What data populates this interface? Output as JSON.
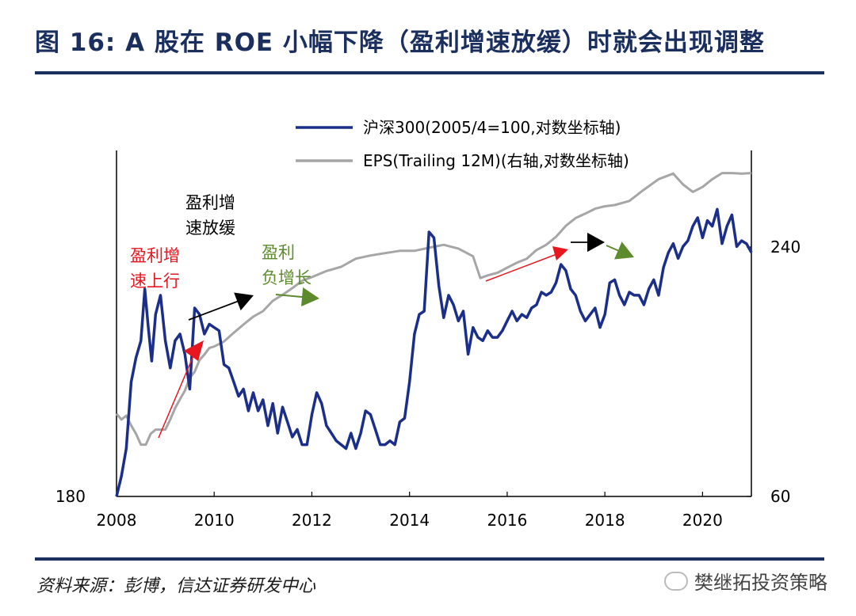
{
  "header": {
    "title": "图 16: A 股在 ROE 小幅下降（盈利增速放缓）时就会出现调整"
  },
  "footer": {
    "source": "资料来源：彭博，信达证券研发中心",
    "watermark": "樊继拓投资策略"
  },
  "colors": {
    "title": "#1b2f5e",
    "csi300": "#1b2f8a",
    "eps": "#a6a6a6",
    "arrow_red": "#e8161f",
    "arrow_black": "#000000",
    "arrow_green": "#5e8a2e"
  },
  "chart_data": {
    "type": "line",
    "legend_position": "top",
    "grid": false,
    "x_ticks": [
      "2008",
      "2010",
      "2012",
      "2014",
      "2016",
      "2018",
      "2020"
    ],
    "xlim": [
      2008,
      2021
    ],
    "y_left_label_bottom": "180",
    "y_right_labels": [
      "240",
      "60"
    ],
    "y_right_scale": "log",
    "annotations": [
      {
        "text": "盈利增\n速上行",
        "color": "#e8161f"
      },
      {
        "text": "盈利增\n速放缓",
        "color": "#000000"
      },
      {
        "text": "盈利\n负增长",
        "color": "#5e8a2e"
      }
    ],
    "series": [
      {
        "name": "沪深300(2005/4=100,对数坐标轴)",
        "color": "#1b2f8a",
        "x": [
          2008.0,
          2008.1,
          2008.2,
          2008.3,
          2008.4,
          2008.5,
          2008.58,
          2008.65,
          2008.72,
          2008.8,
          2008.9,
          2009.0,
          2009.1,
          2009.2,
          2009.3,
          2009.4,
          2009.5,
          2009.6,
          2009.7,
          2009.8,
          2009.9,
          2010.0,
          2010.1,
          2010.2,
          2010.3,
          2010.4,
          2010.5,
          2010.6,
          2010.7,
          2010.8,
          2010.9,
          2011.0,
          2011.1,
          2011.2,
          2011.3,
          2011.4,
          2011.5,
          2011.6,
          2011.7,
          2011.8,
          2011.9,
          2012.0,
          2012.1,
          2012.2,
          2012.3,
          2012.4,
          2012.5,
          2012.6,
          2012.7,
          2012.8,
          2012.9,
          2013.0,
          2013.1,
          2013.2,
          2013.3,
          2013.4,
          2013.5,
          2013.6,
          2013.7,
          2013.8,
          2013.9,
          2014.0,
          2014.1,
          2014.2,
          2014.3,
          2014.4,
          2014.5,
          2014.6,
          2014.7,
          2014.8,
          2014.9,
          2015.0,
          2015.1,
          2015.2,
          2015.3,
          2015.4,
          2015.5,
          2015.6,
          2015.7,
          2015.8,
          2015.9,
          2016.0,
          2016.1,
          2016.2,
          2016.3,
          2016.4,
          2016.5,
          2016.6,
          2016.7,
          2016.8,
          2016.9,
          2017.0,
          2017.1,
          2017.2,
          2017.3,
          2017.4,
          2017.5,
          2017.6,
          2017.7,
          2017.8,
          2017.9,
          2018.0,
          2018.1,
          2018.2,
          2018.3,
          2018.4,
          2018.5,
          2018.6,
          2018.7,
          2018.8,
          2018.9,
          2019.0,
          2019.1,
          2019.2,
          2019.3,
          2019.4,
          2019.5,
          2019.6,
          2019.7,
          2019.8,
          2019.9,
          2020.0,
          2020.1,
          2020.2,
          2020.3,
          2020.4,
          2020.5,
          2020.6,
          2020.7,
          2020.8,
          2020.9,
          2021.0
        ],
        "y": [
          180,
          185,
          192,
          210,
          217,
          222,
          238,
          226,
          216,
          230,
          236,
          222,
          214,
          222,
          224,
          218,
          208,
          232,
          230,
          224,
          227,
          226,
          225,
          215,
          214,
          210,
          206,
          208,
          202,
          207,
          202,
          205,
          198,
          204,
          196,
          203,
          199,
          195,
          197,
          193,
          193,
          201,
          207,
          204,
          198,
          196,
          194,
          193,
          192,
          196,
          192,
          196,
          202,
          201,
          197,
          193,
          193,
          194,
          193,
          199,
          200,
          210,
          224,
          230,
          231,
          257,
          255,
          239,
          229,
          236,
          233,
          228,
          231,
          218,
          226,
          223,
          222,
          225,
          223,
          223,
          225,
          228,
          231,
          228,
          230,
          229,
          232,
          233,
          237,
          236,
          237,
          240,
          246,
          244,
          238,
          236,
          231,
          228,
          230,
          232,
          226,
          230,
          240,
          241,
          236,
          233,
          237,
          236,
          236,
          233,
          238,
          241,
          236,
          245,
          250,
          253,
          248,
          252,
          254,
          259,
          262,
          255,
          261,
          259,
          265,
          253,
          259,
          263,
          252,
          254,
          253,
          250
        ]
      },
      {
        "name": "EPS(Trailing 12M)(右轴,对数坐标轴)",
        "color": "#a6a6a6",
        "x": [
          2008.0,
          2008.1,
          2008.2,
          2008.3,
          2008.4,
          2008.5,
          2008.6,
          2008.7,
          2008.8,
          2008.9,
          2009.0,
          2009.1,
          2009.2,
          2009.3,
          2009.4,
          2009.5,
          2009.6,
          2009.7,
          2009.8,
          2009.9,
          2010.0,
          2010.2,
          2010.4,
          2010.6,
          2010.8,
          2011.0,
          2011.2,
          2011.4,
          2011.6,
          2011.8,
          2012.0,
          2012.3,
          2012.6,
          2012.9,
          2013.2,
          2013.5,
          2013.8,
          2014.1,
          2014.4,
          2014.7,
          2015.0,
          2015.3,
          2015.45,
          2015.6,
          2015.8,
          2016.0,
          2016.2,
          2016.4,
          2016.6,
          2016.8,
          2017.0,
          2017.2,
          2017.4,
          2017.6,
          2017.8,
          2018.0,
          2018.2,
          2018.5,
          2018.8,
          2019.1,
          2019.4,
          2019.6,
          2019.8,
          2020.0,
          2020.2,
          2020.4,
          2020.6,
          2020.8,
          2021.0
        ],
        "y": [
          95,
          92,
          94,
          89,
          85,
          80,
          80,
          85,
          87,
          87,
          87,
          92,
          98,
          103,
          108,
          116,
          120,
          128,
          132,
          137,
          138,
          142,
          149,
          156,
          163,
          168,
          178,
          184,
          191,
          199,
          203,
          210,
          215,
          225,
          229,
          232,
          235,
          235,
          239,
          243,
          238,
          228,
          202,
          205,
          208,
          214,
          220,
          225,
          236,
          243,
          254,
          270,
          282,
          289,
          297,
          301,
          303,
          310,
          330,
          350,
          361,
          340,
          326,
          335,
          350,
          362,
          362,
          361,
          362
        ]
      }
    ]
  }
}
